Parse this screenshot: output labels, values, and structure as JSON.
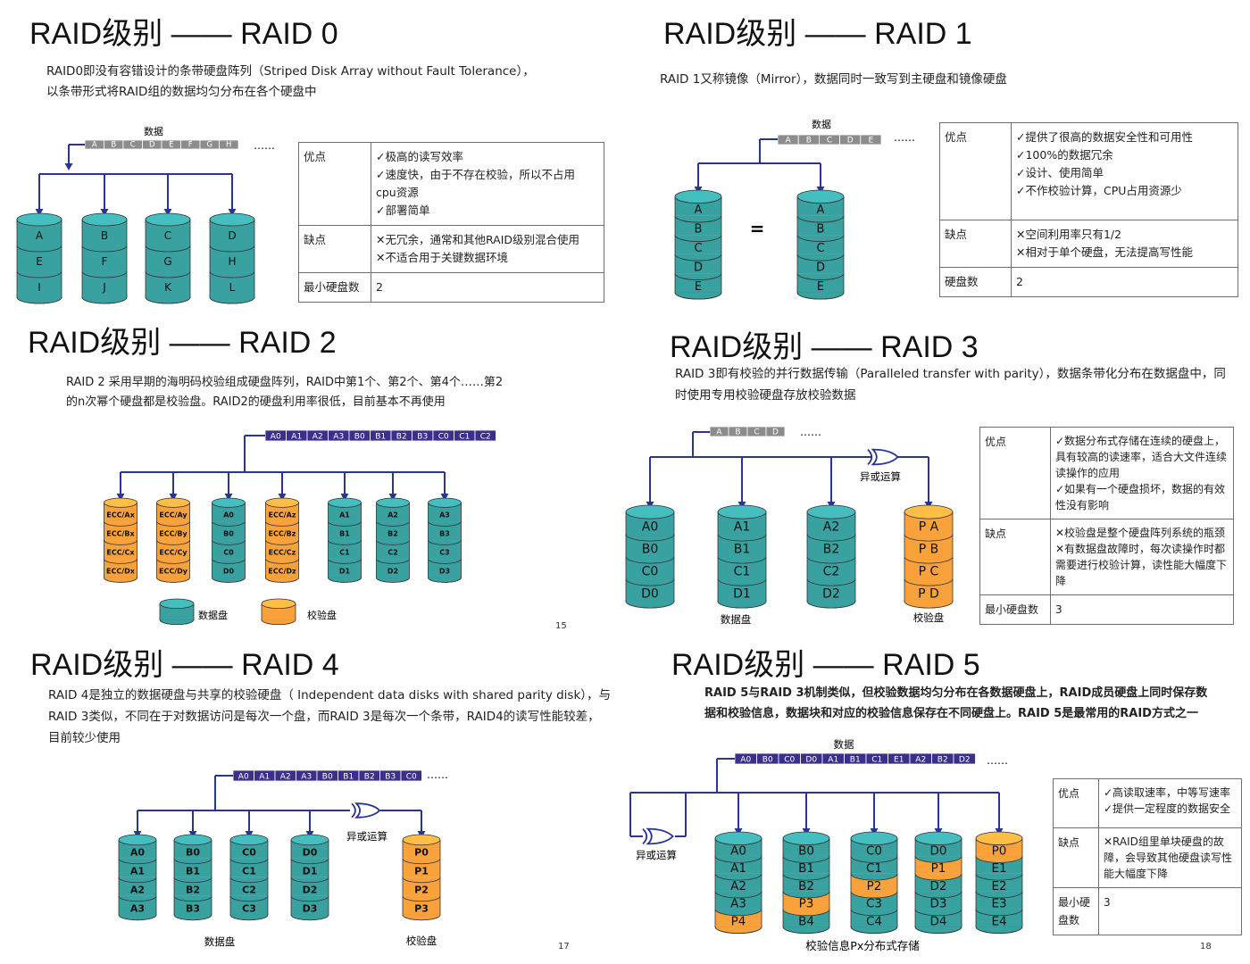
{
  "colors": {
    "data_disk": "#3aa1a1",
    "parity_disk": "#f9a23c",
    "strip_gray": "#8c8c8c",
    "strip_blue": "#3b2f8c",
    "arrow": "#283593"
  },
  "icons": [
    "disk-icon",
    "xor-gate-icon",
    "arrow-icon"
  ],
  "raid0": {
    "title": "RAID级别 —— RAID 0",
    "desc": [
      "RAID0即没有容错设计的条带硬盘阵列（Striped Disk Array without Fault Tolerance），",
      "以条带形式将RAID组的数据均匀分布在各个硬盘中"
    ],
    "data_label": "数据",
    "strip": [
      "A",
      "B",
      "C",
      "D",
      "E",
      "F",
      "G",
      "H"
    ],
    "ellipsis": "……",
    "disks": [
      [
        "A",
        "E",
        "I"
      ],
      [
        "B",
        "F",
        "J"
      ],
      [
        "C",
        "G",
        "K"
      ],
      [
        "D",
        "H",
        "L"
      ]
    ],
    "table": [
      {
        "label": "优点",
        "lines": [
          "✓极高的读写效率",
          "✓速度快，由于不存在校验，所以不占用",
          "cpu资源",
          "✓部署简单"
        ]
      },
      {
        "label": "缺点",
        "lines": [
          "✕无冗余，通常和其他RAID级别混合使用",
          "✕不适合用于关键数据环境"
        ]
      },
      {
        "label": "最小硬盘数",
        "lines": [
          "2"
        ]
      }
    ]
  },
  "raid1": {
    "title": "RAID级别 —— RAID 1",
    "desc": [
      "RAID 1又称镜像（Mirror），数据同时一致写到主硬盘和镜像硬盘"
    ],
    "data_label": "数据",
    "strip": [
      "A",
      "B",
      "C",
      "D",
      "E"
    ],
    "ellipsis": "……",
    "equals": "=",
    "disks": [
      [
        "A",
        "B",
        "C",
        "D",
        "E"
      ],
      [
        "A",
        "B",
        "C",
        "D",
        "E"
      ]
    ],
    "table": [
      {
        "label": "优点",
        "lines": [
          "✓提供了很高的数据安全性和可用性",
          "✓100%的数据冗余",
          "✓设计、使用简单",
          "✓不作校验计算，CPU占用资源少"
        ]
      },
      {
        "label": "缺点",
        "lines": [
          "✕空间利用率只有1/2",
          "✕相对于单个硬盘，无法提高写性能"
        ]
      },
      {
        "label": "硬盘数",
        "lines": [
          "2"
        ]
      }
    ]
  },
  "raid2": {
    "title": "RAID级别 —— RAID 2",
    "desc": [
      "RAID 2 采用早期的海明码校验组成硬盘阵列，RAID中第1个、第2个、第4个……第2",
      "的n次幂个硬盘都是校验盘。RAID2的硬盘利用率很低，目前基本不再使用"
    ],
    "strip": [
      "A0",
      "A1",
      "A2",
      "A3",
      "B0",
      "B1",
      "B2",
      "B3",
      "C0",
      "C1",
      "C2"
    ],
    "disks": [
      {
        "type": "parity",
        "cells": [
          "ECC/Ax",
          "ECC/Bx",
          "ECC/Cx",
          "ECC/Dx"
        ]
      },
      {
        "type": "parity",
        "cells": [
          "ECC/Ay",
          "ECC/By",
          "ECC/Cy",
          "ECC/Dy"
        ]
      },
      {
        "type": "data",
        "cells": [
          "A0",
          "B0",
          "C0",
          "D0"
        ]
      },
      {
        "type": "parity",
        "cells": [
          "ECC/Az",
          "ECC/Bz",
          "ECC/Cz",
          "ECC/Dz"
        ]
      },
      {
        "type": "data",
        "cells": [
          "A1",
          "B1",
          "C1",
          "D1"
        ]
      },
      {
        "type": "data",
        "cells": [
          "A2",
          "B2",
          "C2",
          "D2"
        ]
      },
      {
        "type": "data",
        "cells": [
          "A3",
          "B3",
          "C3",
          "D3"
        ]
      }
    ],
    "legend_data": "数据盘",
    "legend_parity": "校验盘",
    "page": "15"
  },
  "raid3": {
    "title": "RAID级别 —— RAID 3",
    "desc": [
      "RAID 3即有校验的并行数据传输（Paralleled transfer with parity），数据条带化分布在数据盘中，同",
      "时使用专用校验硬盘存放校验数据"
    ],
    "strip": [
      "A",
      "B",
      "C",
      "D"
    ],
    "ellipsis": "……",
    "xor_label": "异或运算",
    "disks": [
      {
        "type": "data",
        "cells": [
          "A0",
          "B0",
          "C0",
          "D0"
        ]
      },
      {
        "type": "data",
        "cells": [
          "A1",
          "B1",
          "C1",
          "D1"
        ]
      },
      {
        "type": "data",
        "cells": [
          "A2",
          "B2",
          "C2",
          "D2"
        ]
      },
      {
        "type": "parity",
        "cells": [
          "P A",
          "P B",
          "P C",
          "P D"
        ]
      }
    ],
    "data_caption": "数据盘",
    "parity_caption": "校验盘",
    "table": [
      {
        "label": "优点",
        "lines": [
          "✓数据分布式存储在连续的硬盘上，具有较高的读速率，适合大文件连续读操作的应用",
          "✓如果有一个硬盘损坏，数据的有效性没有影响"
        ]
      },
      {
        "label": "缺点",
        "lines": [
          "✕校验盘是整个硬盘阵列系统的瓶颈",
          "✕有数据盘故障时，每次读操作时都需要进行校验计算，读性能大幅度下降"
        ]
      },
      {
        "label": "最小硬盘数",
        "lines": [
          "3"
        ]
      }
    ]
  },
  "raid4": {
    "title": "RAID级别 —— RAID 4",
    "desc": [
      "RAID 4是独立的数据硬盘与共享的校验硬盘（ Independent data disks with shared parity disk），与",
      "RAID 3类似，不同在于对数据访问是每次一个盘，而RAID 3是每次一个条带，RAID4的读写性能较差，",
      "目前较少使用"
    ],
    "strip": [
      "A0",
      "A1",
      "A2",
      "A3",
      "B0",
      "B1",
      "B2",
      "B3",
      "C0"
    ],
    "ellipsis": "……",
    "xor_label": "异或运算",
    "disks": [
      {
        "type": "data",
        "cells": [
          "A0",
          "A1",
          "A2",
          "A3"
        ]
      },
      {
        "type": "data",
        "cells": [
          "B0",
          "B1",
          "B2",
          "B3"
        ]
      },
      {
        "type": "data",
        "cells": [
          "C0",
          "C1",
          "C2",
          "C3"
        ]
      },
      {
        "type": "data",
        "cells": [
          "D0",
          "D1",
          "D2",
          "D3"
        ]
      },
      {
        "type": "parity",
        "cells": [
          "P0",
          "P1",
          "P2",
          "P3"
        ]
      }
    ],
    "data_caption": "数据盘",
    "parity_caption": "校验盘",
    "page": "17"
  },
  "raid5": {
    "title": "RAID级别 —— RAID 5",
    "desc": [
      "RAID 5与RAID 3机制类似，但校验数据均匀分布在各数据硬盘上，RAID成员硬盘上同时保存数",
      "据和校验信息，数据块和对应的校验信息保存在不同硬盘上。RAID 5是最常用的RAID方式之一"
    ],
    "data_label": "数据",
    "strip": [
      "A0",
      "B0",
      "C0",
      "D0",
      "A1",
      "B1",
      "C1",
      "E1",
      "A2",
      "B2",
      "D2"
    ],
    "ellipsis": "……",
    "xor_label": "异或运算",
    "disks": [
      {
        "cells": [
          "A0",
          "A1",
          "A2",
          "A3",
          "P4"
        ],
        "parity_index": 4
      },
      {
        "cells": [
          "B0",
          "B1",
          "B2",
          "P3",
          "B4"
        ],
        "parity_index": 3
      },
      {
        "cells": [
          "C0",
          "C1",
          "P2",
          "C3",
          "C4"
        ],
        "parity_index": 2
      },
      {
        "cells": [
          "D0",
          "P1",
          "D2",
          "D3",
          "D4"
        ],
        "parity_index": 1
      },
      {
        "cells": [
          "P0",
          "E1",
          "E2",
          "E3",
          "E4"
        ],
        "parity_index": 0
      }
    ],
    "caption": "校验信息Px分布式存储",
    "table": [
      {
        "label": "优点",
        "lines": [
          "✓高读取速率，中等写速率",
          "✓提供一定程度的数据安全"
        ]
      },
      {
        "label": "缺点",
        "lines": [
          "✕RAID组里单块硬盘的故障，会导致其他硬盘读写性能大幅度下降"
        ]
      },
      {
        "label": "最小硬盘数",
        "lines": [
          "3"
        ]
      }
    ],
    "page": "18"
  }
}
